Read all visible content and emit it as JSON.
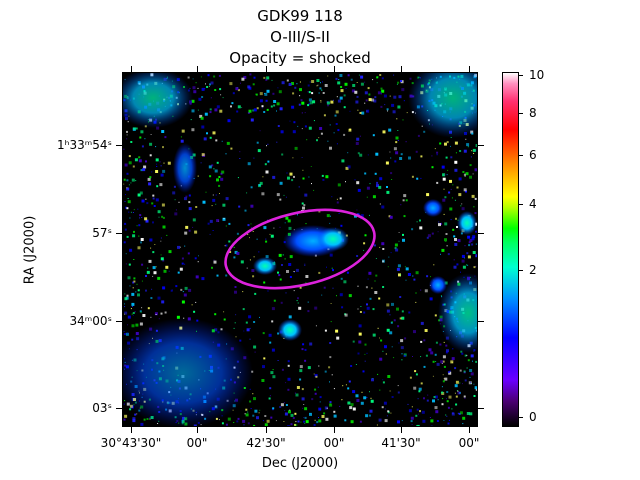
{
  "figure": {
    "title_line1": "GDK99 118",
    "title_line2": "O-III/S-II",
    "title_line3": "Opacity = shocked",
    "xlabel": "Dec (J2000)",
    "ylabel": "RA (J2000)"
  },
  "yticks": [
    {
      "text": "1ʰ33ᵐ54ˢ"
    },
    {
      "text": "57ˢ"
    },
    {
      "text": "34ᵐ00ˢ"
    },
    {
      "text": "03ˢ"
    }
  ],
  "xticks": [
    {
      "text": "30°43'30\""
    },
    {
      "text": "00\""
    },
    {
      "text": "42'30\""
    },
    {
      "text": "00\""
    },
    {
      "text": "41'30\""
    },
    {
      "text": "00\""
    }
  ],
  "colorbar": {
    "ticks": [
      "10",
      "8",
      "6",
      "4",
      "2",
      "0"
    ]
  },
  "colors": {
    "ellipse": "#dd22dd",
    "background": "#000000"
  }
}
